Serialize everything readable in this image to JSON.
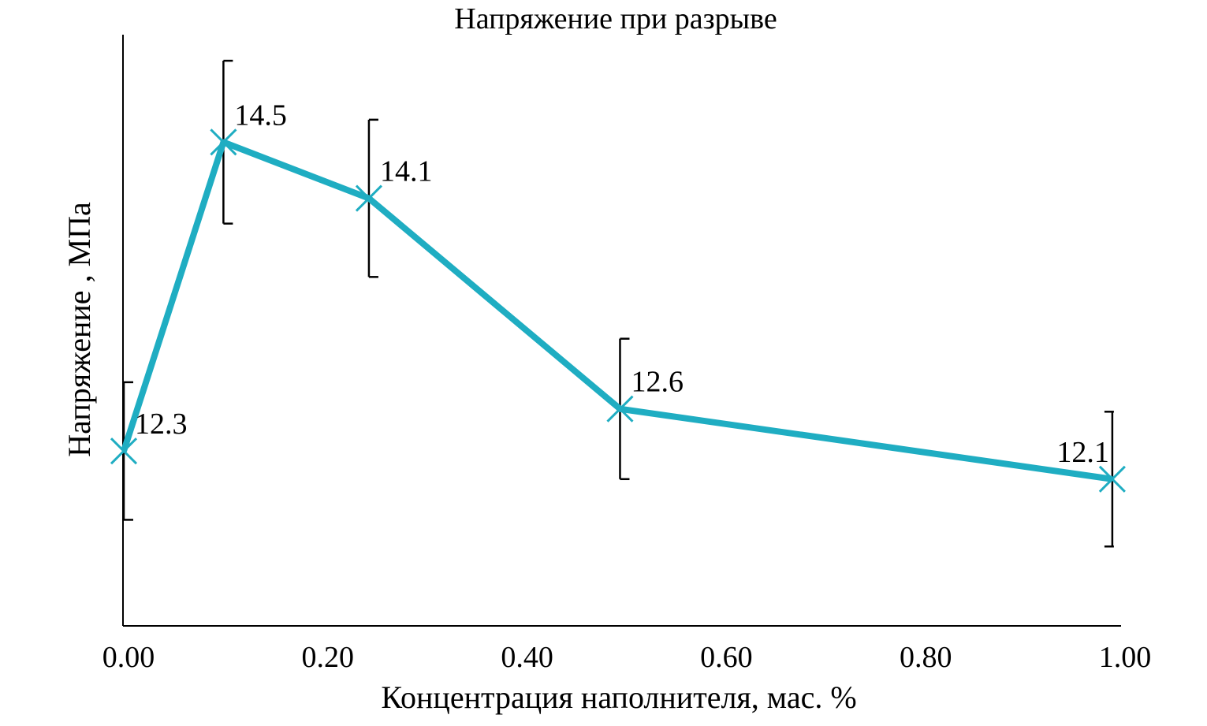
{
  "chart_data": {
    "type": "line",
    "title": "Напряжение при разрыве",
    "xlabel": "Концентрация наполнителя, мас. %",
    "ylabel": "Напряжение , МПа",
    "xlim": [
      0,
      1.0
    ],
    "ylim": [
      11.06,
      15.26
    ],
    "x_ticks": [
      "0.00",
      "0.20",
      "0.40",
      "0.60",
      "0.80",
      "1.00"
    ],
    "x_tick_values": [
      0,
      0.2,
      0.4,
      0.6,
      0.8,
      1.0
    ],
    "grid": false,
    "legend": "none",
    "series": [
      {
        "name": "Напряжение при разрыве",
        "color": "#1fadc2",
        "marker": "x",
        "x": [
          0.0,
          0.1,
          0.246,
          0.498,
          0.992
        ],
        "values": [
          12.3,
          14.5,
          14.1,
          12.6,
          12.1
        ],
        "labels": [
          "12.3",
          "14.5",
          "14.1",
          "12.6",
          "12.1"
        ],
        "error": [
          0.49,
          0.58,
          0.56,
          0.5,
          0.48
        ]
      }
    ]
  }
}
